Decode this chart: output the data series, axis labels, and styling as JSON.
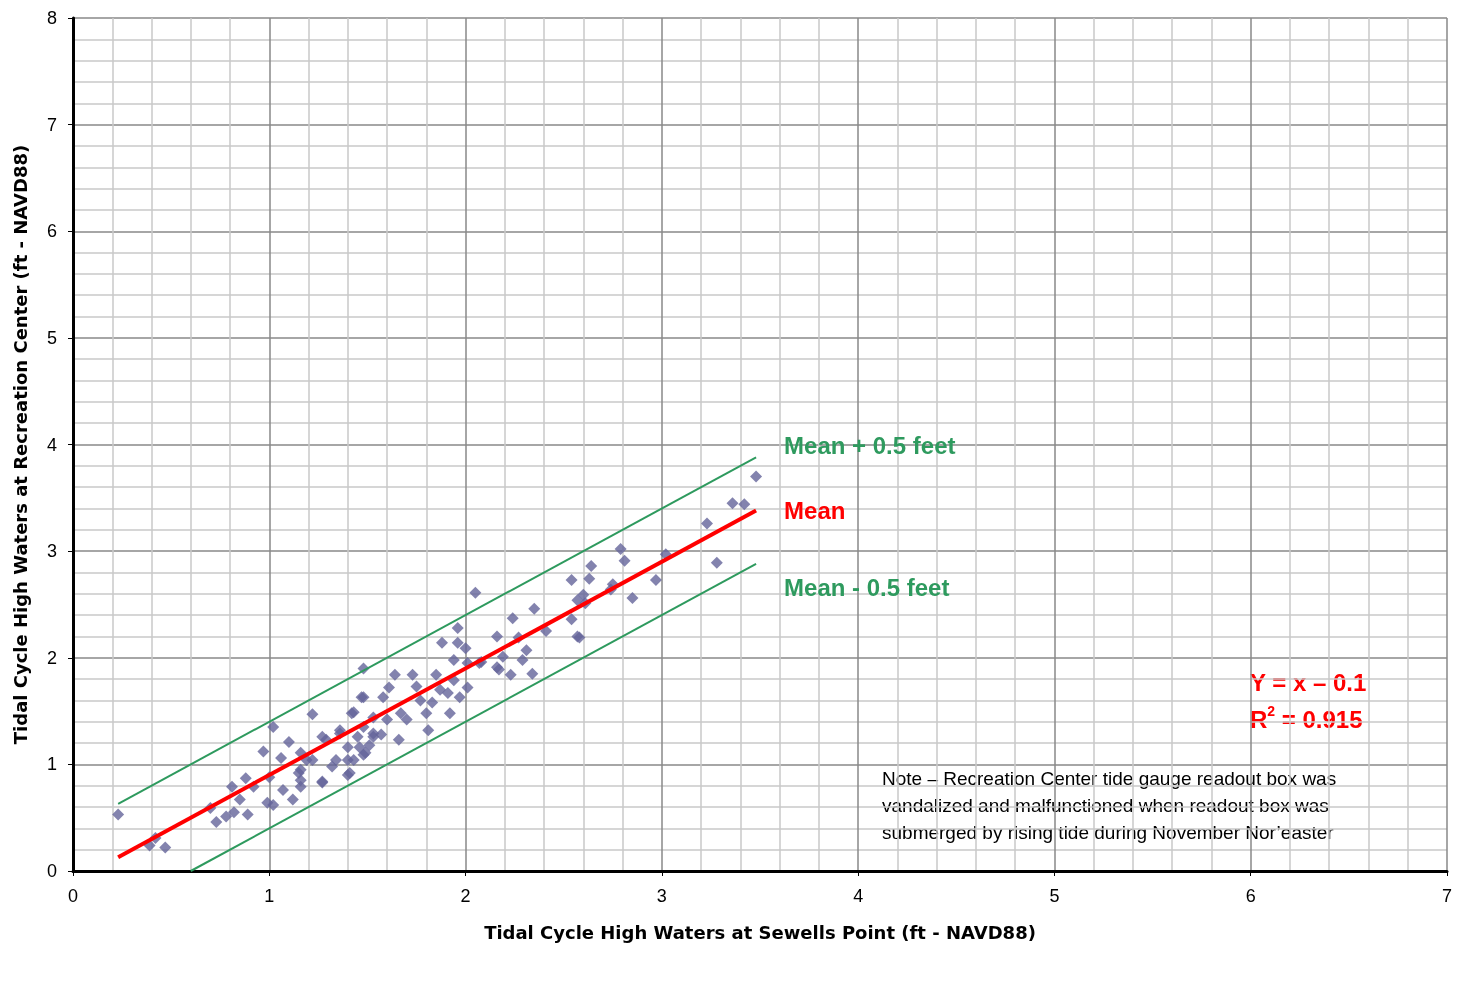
{
  "chart_data": {
    "type": "scatter",
    "xlabel": "Tidal Cycle High Waters at Sewells Point (ft - NAVD88)",
    "ylabel": "Tidal Cycle High Waters at Recreation Center (ft - NAVD88)",
    "xlim": [
      0,
      7
    ],
    "xticks": [
      0,
      1,
      2,
      3,
      4,
      5,
      6,
      7
    ],
    "ylim": [
      0,
      8
    ],
    "yticks": [
      0,
      1,
      2,
      3,
      4,
      5,
      6,
      7,
      8
    ],
    "grid": true,
    "legend": false,
    "annotations": [
      "Y = x – 0.1",
      "R$^{2}$ = 0.915",
      "Note – Recreation Center tide gauge readout box was vandalized and malfunctioned when readout box was submerged by rising tide during November Nor’easter"
    ],
    "series": [
      {
        "marker": "diamond",
        "color": "#64649a",
        "x": [
          0.23,
          0.39,
          0.42,
          0.47,
          0.7,
          0.73,
          0.78,
          0.82,
          0.81,
          0.88,
          0.89,
          0.85,
          0.92,
          0.97,
          1.0,
          0.99,
          1.02,
          1.07,
          1.12,
          1.02,
          1.06,
          1.1,
          1.16,
          1.15,
          1.22,
          1.27,
          1.4,
          1.48,
          1.48,
          1.43,
          1.48,
          1.19,
          1.29,
          1.36,
          1.32,
          1.4,
          1.46,
          1.53,
          1.51,
          2.05,
          2.24,
          1.96,
          1.88,
          1.96,
          2.0,
          2.16,
          2.27,
          1.64,
          1.73,
          1.85,
          1.94,
          2.01,
          2.07,
          2.19,
          2.23,
          2.17,
          1.47,
          1.42,
          1.61,
          1.75,
          1.8,
          1.81,
          1.92,
          1.97,
          2.01,
          1.87,
          1.67,
          1.58,
          1.53,
          1.48,
          1.66,
          1.57,
          1.49,
          1.41,
          1.27,
          1.16,
          1.27,
          1.36,
          1.4,
          1.43,
          1.34,
          1.22,
          1.16,
          1.16,
          1.45,
          1.53,
          1.6,
          1.7,
          1.77,
          1.83,
          1.91,
          1.94,
          3.48,
          3.36,
          3.42,
          3.23,
          3.28,
          3.02,
          2.97,
          2.79,
          2.81,
          2.85,
          2.75,
          2.74,
          2.64,
          2.63,
          2.54,
          2.6,
          2.57,
          2.61,
          2.54,
          2.58,
          2.57,
          2.35,
          2.41,
          2.31,
          2.29,
          2.34,
          2.16,
          2.08
        ],
        "values": [
          0.53,
          0.24,
          0.31,
          0.22,
          0.59,
          0.46,
          0.51,
          0.55,
          0.79,
          0.87,
          0.53,
          0.67,
          0.79,
          1.12,
          0.88,
          0.64,
          0.62,
          0.76,
          0.67,
          1.35,
          1.06,
          1.21,
          0.79,
          0.92,
          1.47,
          0.83,
          0.9,
          1.9,
          1.63,
          1.49,
          1.09,
          1.04,
          1.23,
          1.29,
          0.98,
          1.04,
          1.16,
          1.29,
          1.18,
          2.61,
          2.37,
          2.28,
          2.14,
          2.14,
          2.09,
          2.2,
          2.19,
          1.84,
          1.84,
          1.84,
          1.98,
          1.95,
          1.95,
          2.01,
          1.84,
          1.89,
          1.63,
          1.48,
          1.72,
          1.73,
          1.48,
          1.32,
          1.48,
          1.63,
          1.72,
          1.7,
          1.48,
          1.63,
          1.44,
          1.35,
          1.23,
          1.28,
          1.11,
          0.92,
          0.84,
          1.11,
          1.26,
          1.32,
          1.16,
          1.04,
          1.04,
          1.04,
          0.95,
          0.85,
          1.26,
          1.26,
          1.42,
          1.42,
          1.6,
          1.58,
          1.67,
          1.79,
          3.7,
          3.45,
          3.44,
          3.26,
          2.89,
          2.97,
          2.73,
          3.02,
          2.91,
          2.56,
          2.69,
          2.64,
          2.86,
          2.74,
          2.73,
          2.59,
          2.54,
          2.51,
          2.36,
          2.19,
          2.2,
          2.46,
          2.25,
          2.07,
          1.98,
          1.85,
          1.91,
          1.96
        ]
      },
      {
        "type": "line",
        "marker": "none",
        "name": "Mean + 0.5 feet",
        "color": "#2e9a5e",
        "x": [
          0.23,
          3.48
        ],
        "values": [
          0.63,
          3.88
        ]
      },
      {
        "type": "line",
        "marker": "none",
        "name": "Mean",
        "color": "#ff0000",
        "x": [
          0.23,
          3.48
        ],
        "values": [
          0.13,
          3.38
        ]
      },
      {
        "type": "line",
        "marker": "none",
        "name": "Mean - 0.5 feet",
        "color": "#2e9a5e",
        "x": [
          0.6,
          3.48
        ],
        "values": [
          0,
          2.88
        ]
      }
    ]
  }
}
